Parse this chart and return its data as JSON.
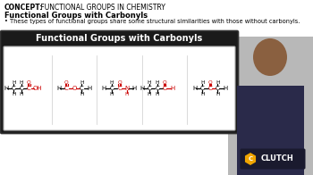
{
  "concept_label": "CONCEPT:",
  "concept_text": " FUNCTIONAL GROUPS IN CHEMISTRY",
  "section_title": "Functional Groups with Carbonyls",
  "bullet_text": "These types of functional groups share some structural similarities with those without carbonyls.",
  "box_title": "Functional Groups with Carbonyls",
  "box_bg": "#1a1a1a",
  "box_title_color": "#ffffff",
  "inner_bg": "#ffffff",
  "bg_color": "#ffffff",
  "structures": [
    {
      "name": "carboxylic_acid"
    },
    {
      "name": "ester"
    },
    {
      "name": "amide"
    },
    {
      "name": "aldehyde"
    },
    {
      "name": "ketone"
    }
  ]
}
